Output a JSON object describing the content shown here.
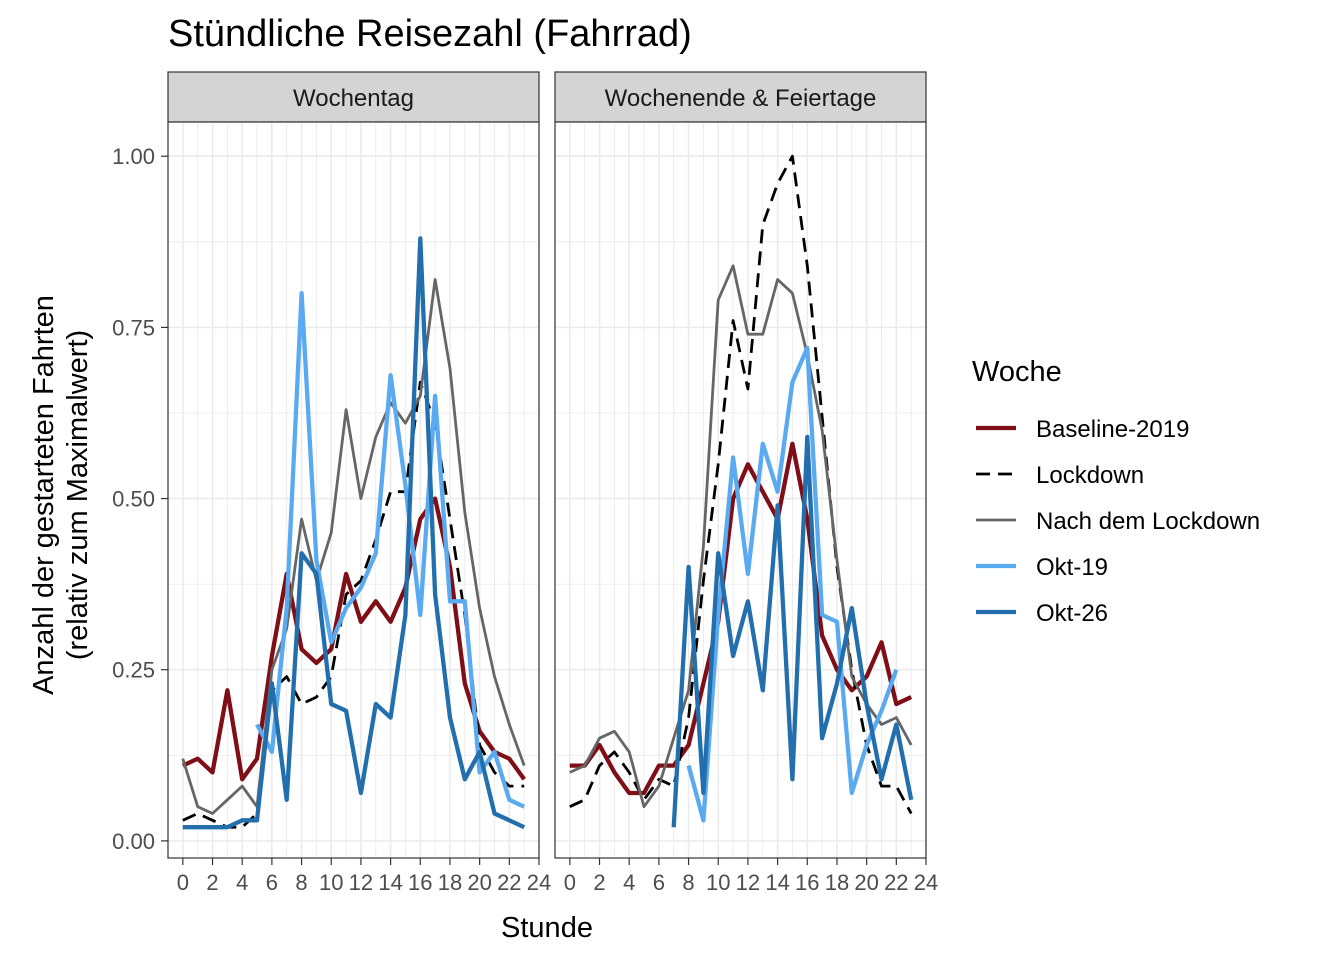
{
  "chart_data": {
    "type": "line",
    "title": "Stündliche Reisezahl (Fahrrad)",
    "xlabel": "Stunde",
    "ylabel": [
      "Anzahl der gestarteten Fahrten",
      "(relativ zum Maximalwert)"
    ],
    "xlim": [
      -1,
      24
    ],
    "ylim": [
      -0.025,
      1.05
    ],
    "x_ticks": [
      "0",
      "2",
      "4",
      "6",
      "8",
      "10",
      "12",
      "14",
      "16",
      "18",
      "20",
      "22",
      "24"
    ],
    "y_ticks": [
      "0.00",
      "0.25",
      "0.50",
      "0.75",
      "1.00"
    ],
    "legend": {
      "title": "Woche",
      "position": "right"
    },
    "grid": true,
    "panels": [
      {
        "label": "Wochentag",
        "series": [
          {
            "name": "Baseline-2019",
            "x": [
              0,
              1,
              2,
              3,
              4,
              5,
              6,
              7,
              8,
              9,
              10,
              11,
              12,
              13,
              14,
              15,
              16,
              17,
              18,
              19,
              20,
              21,
              22,
              23
            ],
            "values": [
              0.11,
              0.12,
              0.1,
              0.22,
              0.09,
              0.12,
              0.27,
              0.39,
              0.28,
              0.26,
              0.28,
              0.39,
              0.32,
              0.35,
              0.32,
              0.37,
              0.47,
              0.5,
              0.4,
              0.23,
              0.16,
              0.13,
              0.12,
              0.09
            ]
          },
          {
            "name": "Lockdown",
            "x": [
              0,
              1,
              2,
              3,
              4,
              5,
              6,
              7,
              8,
              9,
              10,
              11,
              12,
              13,
              14,
              15,
              16,
              17,
              18,
              19,
              20,
              21,
              22,
              23
            ],
            "values": [
              0.03,
              0.04,
              0.03,
              0.02,
              0.02,
              0.04,
              0.22,
              0.24,
              0.2,
              0.21,
              0.24,
              0.36,
              0.38,
              0.44,
              0.51,
              0.51,
              0.67,
              0.61,
              0.47,
              0.33,
              0.14,
              0.1,
              0.08,
              0.08
            ]
          },
          {
            "name": "Nach dem Lockdown",
            "x": [
              0,
              1,
              2,
              3,
              4,
              5,
              6,
              7,
              8,
              9,
              10,
              11,
              12,
              13,
              14,
              15,
              16,
              17,
              18,
              19,
              20,
              21,
              22,
              23
            ],
            "values": [
              0.12,
              0.05,
              0.04,
              0.06,
              0.08,
              0.05,
              0.25,
              0.31,
              0.47,
              0.38,
              0.45,
              0.63,
              0.5,
              0.59,
              0.64,
              0.61,
              0.65,
              0.82,
              0.69,
              0.48,
              0.34,
              0.24,
              0.17,
              0.11
            ]
          },
          {
            "name": "Okt-19",
            "x": [
              5,
              6,
              7,
              8,
              9,
              10,
              11,
              12,
              13,
              14,
              15,
              16,
              17,
              18,
              19,
              20,
              21,
              22,
              23
            ],
            "values": [
              0.17,
              0.13,
              0.34,
              0.8,
              0.41,
              0.29,
              0.34,
              0.37,
              0.42,
              0.68,
              0.52,
              0.33,
              0.65,
              0.35,
              0.35,
              0.1,
              0.13,
              0.06,
              0.05
            ]
          },
          {
            "name": "Okt-26",
            "x": [
              0,
              1,
              2,
              3,
              4,
              5,
              6,
              7,
              8,
              9,
              10,
              11,
              12,
              13,
              14,
              15,
              16,
              17,
              18,
              19,
              20,
              21,
              22,
              23
            ],
            "values": [
              0.02,
              0.02,
              0.02,
              0.02,
              0.03,
              0.03,
              0.23,
              0.06,
              0.42,
              0.39,
              0.2,
              0.19,
              0.07,
              0.2,
              0.18,
              0.33,
              0.88,
              0.36,
              0.18,
              0.09,
              0.13,
              0.04,
              0.03,
              0.02
            ]
          }
        ]
      },
      {
        "label": "Wochenende & Feiertage",
        "series": [
          {
            "name": "Baseline-2019",
            "x": [
              0,
              1,
              2,
              3,
              4,
              5,
              6,
              7,
              8,
              9,
              10,
              11,
              12,
              13,
              14,
              15,
              16,
              17,
              18,
              19,
              20,
              21,
              22,
              23
            ],
            "values": [
              0.11,
              0.11,
              0.14,
              0.1,
              0.07,
              0.07,
              0.11,
              0.11,
              0.14,
              0.23,
              0.32,
              0.5,
              0.55,
              0.51,
              0.47,
              0.58,
              0.47,
              0.3,
              0.25,
              0.22,
              0.24,
              0.29,
              0.2,
              0.21
            ]
          },
          {
            "name": "Lockdown",
            "x": [
              0,
              1,
              2,
              3,
              4,
              5,
              6,
              7,
              8,
              9,
              10,
              11,
              12,
              13,
              14,
              15,
              16,
              17,
              18,
              19,
              20,
              21,
              22,
              23
            ],
            "values": [
              0.05,
              0.06,
              0.11,
              0.13,
              0.1,
              0.06,
              0.09,
              0.08,
              0.18,
              0.38,
              0.55,
              0.76,
              0.66,
              0.9,
              0.96,
              1.0,
              0.84,
              0.62,
              0.4,
              0.25,
              0.14,
              0.08,
              0.08,
              0.04
            ]
          },
          {
            "name": "Nach dem Lockdown",
            "x": [
              0,
              1,
              2,
              3,
              4,
              5,
              6,
              7,
              8,
              9,
              10,
              11,
              12,
              13,
              14,
              15,
              16,
              17,
              18,
              19,
              20,
              21,
              22,
              23
            ],
            "values": [
              0.1,
              0.11,
              0.15,
              0.16,
              0.13,
              0.05,
              0.08,
              0.15,
              0.22,
              0.43,
              0.79,
              0.84,
              0.74,
              0.74,
              0.82,
              0.8,
              0.71,
              0.6,
              0.41,
              0.24,
              0.2,
              0.17,
              0.18,
              0.14
            ]
          },
          {
            "name": "Okt-19",
            "x": [
              8,
              9,
              10,
              11,
              12,
              13,
              14,
              15,
              16,
              17,
              18,
              19,
              20,
              21,
              22
            ],
            "values": [
              0.11,
              0.03,
              0.33,
              0.56,
              0.39,
              0.58,
              0.51,
              0.67,
              0.72,
              0.33,
              0.32,
              0.07,
              0.14,
              0.19,
              0.25
            ]
          },
          {
            "name": "Okt-26",
            "x": [
              7,
              8,
              9,
              10,
              11,
              12,
              13,
              14,
              15,
              16,
              17,
              18,
              19,
              20,
              21,
              22,
              23
            ],
            "values": [
              0.02,
              0.4,
              0.07,
              0.42,
              0.27,
              0.35,
              0.22,
              0.49,
              0.09,
              0.59,
              0.15,
              0.23,
              0.34,
              0.2,
              0.09,
              0.17,
              0.06
            ]
          }
        ]
      }
    ]
  },
  "series_styles": {
    "Baseline-2019": {
      "color": "#7f0e16",
      "dash": "",
      "width": 4.3
    },
    "Lockdown": {
      "color": "#000000",
      "dash": "14,8",
      "width": 2.8
    },
    "Nach dem Lockdown": {
      "color": "#666666",
      "dash": "",
      "width": 2.8
    },
    "Okt-19": {
      "color": "#5aaaf2",
      "dash": "",
      "width": 4.3
    },
    "Okt-26": {
      "color": "#236fae",
      "dash": "",
      "width": 4.3
    }
  },
  "legend_items": [
    "Baseline-2019",
    "Lockdown",
    "Nach dem Lockdown",
    "Okt-19",
    "Okt-26"
  ]
}
